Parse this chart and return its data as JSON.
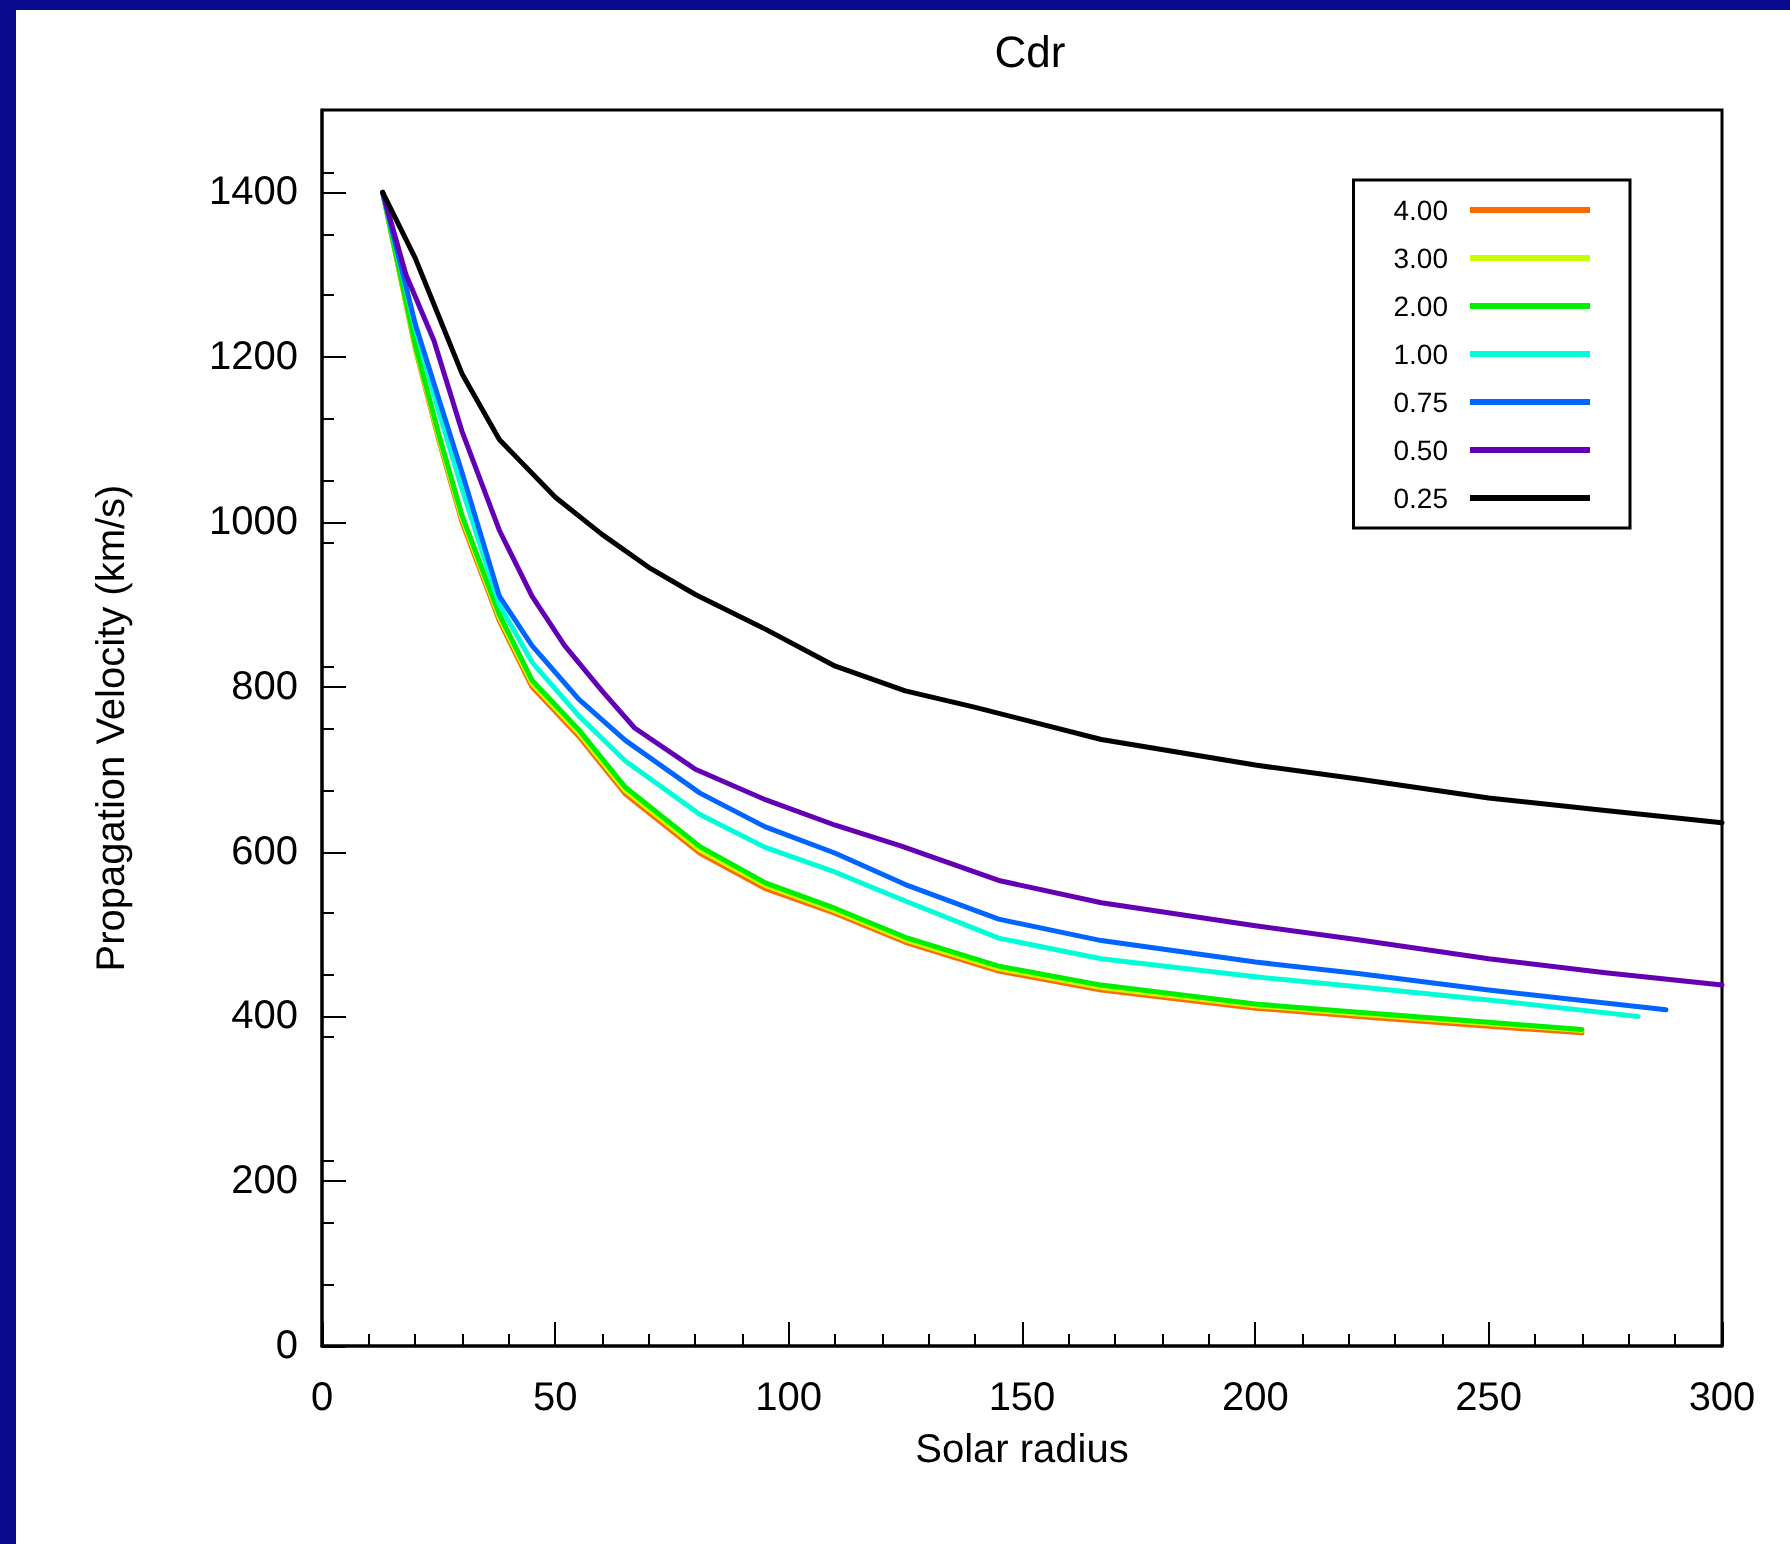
{
  "chart_data": {
    "type": "line",
    "title": "Cdr",
    "xlabel": "Solar radius",
    "ylabel": "Propagation Velocity (km/s)",
    "xlim": [
      0,
      300
    ],
    "xticks": [
      0,
      50,
      100,
      150,
      200,
      250,
      300
    ],
    "ylim": [
      0,
      1500
    ],
    "yticks": [
      0,
      200,
      400,
      600,
      800,
      1000,
      1200,
      1400
    ],
    "grid": false,
    "legend": "top right",
    "marker": "none",
    "line_style": "solid",
    "x": [
      13,
      20,
      25,
      30,
      38,
      45,
      55,
      65,
      81,
      95,
      110,
      125,
      145,
      167,
      200,
      222,
      250,
      270
    ],
    "series": [
      {
        "name": "4.00",
        "color": "#ff6a00",
        "values": [
          1400,
          1210,
          1100,
          1000,
          880,
          800,
          740,
          670,
          598,
          555,
          525,
          490,
          455,
          432,
          410,
          400,
          388,
          380
        ]
      },
      {
        "name": "3.00",
        "color": "#c8ff00",
        "values": [
          1400,
          1212,
          1103,
          1004,
          884,
          804,
          744,
          674,
          602,
          559,
          528,
          493,
          458,
          435,
          413,
          403,
          391,
          383
        ]
      },
      {
        "name": "2.00",
        "color": "#00ee00",
        "values": [
          1400,
          1215,
          1107,
          1008,
          888,
          808,
          748,
          678,
          606,
          562,
          531,
          496,
          461,
          438,
          415,
          405,
          393,
          384
        ]
      },
      {
        "name": "1.00",
        "color": "#00ffd8",
        "x": [
          13,
          20,
          25,
          30,
          38,
          45,
          55,
          65,
          81,
          95,
          110,
          125,
          145,
          167,
          200,
          222,
          250,
          282
        ],
        "values": [
          1400,
          1235,
          1135,
          1040,
          900,
          830,
          765,
          710,
          645,
          605,
          575,
          540,
          495,
          470,
          448,
          436,
          420,
          400
        ]
      },
      {
        "name": "0.75",
        "color": "#0064ff",
        "x": [
          13,
          20,
          25,
          30,
          38,
          45,
          55,
          65,
          81,
          95,
          110,
          125,
          145,
          167,
          200,
          222,
          250,
          288
        ],
        "values": [
          1400,
          1240,
          1150,
          1060,
          910,
          850,
          785,
          735,
          671,
          630,
          598,
          560,
          518,
          492,
          466,
          452,
          432,
          408
        ]
      },
      {
        "name": "0.50",
        "color": "#6400b4",
        "x": [
          13,
          18,
          24,
          30,
          38,
          45,
          52,
          60,
          67,
          80,
          95,
          110,
          124,
          145,
          167,
          200,
          222,
          250,
          275,
          300
        ],
        "values": [
          1400,
          1300,
          1220,
          1110,
          990,
          910,
          850,
          795,
          750,
          700,
          663,
          632,
          607,
          565,
          538,
          510,
          493,
          470,
          453,
          438
        ]
      },
      {
        "name": "0.25",
        "color": "#000000",
        "x": [
          13,
          20,
          25,
          30,
          38,
          50,
          60,
          70,
          80,
          95,
          110,
          125,
          140,
          167,
          200,
          222,
          250,
          275,
          300
        ],
        "values": [
          1400,
          1320,
          1250,
          1180,
          1100,
          1030,
          985,
          945,
          912,
          870,
          825,
          795,
          775,
          736,
          705,
          688,
          665,
          650,
          635
        ]
      }
    ]
  }
}
